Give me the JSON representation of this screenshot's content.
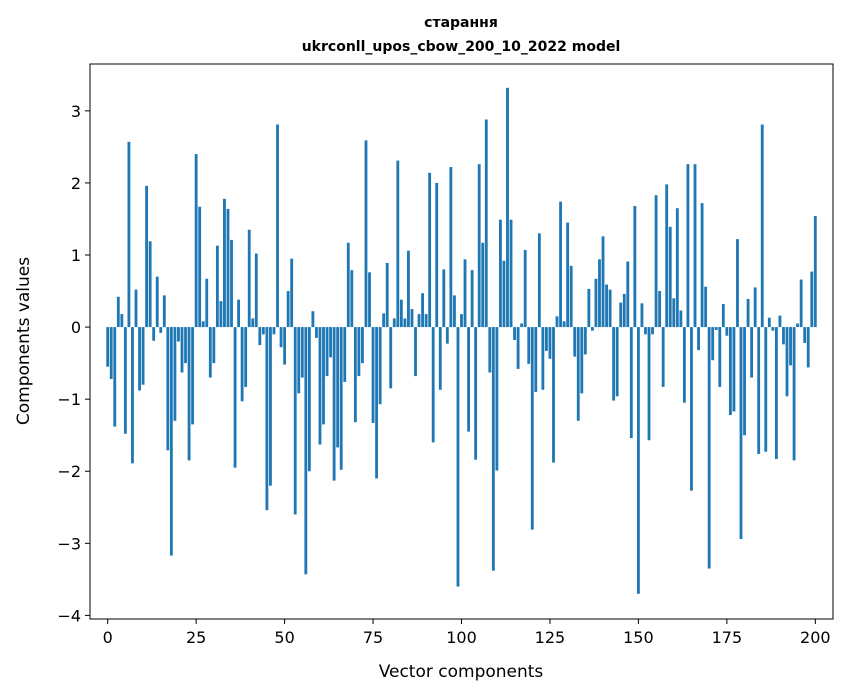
{
  "chart_data": {
    "type": "bar",
    "title": "старання",
    "subtitle": "ukrconll_upos_cbow_200_10_2022 model",
    "xlabel": "Vector components",
    "ylabel": "Components values",
    "xlim": [
      -5,
      205
    ],
    "ylim": [
      -4.05,
      3.65
    ],
    "xticks": [
      0,
      25,
      50,
      75,
      100,
      125,
      150,
      175,
      200
    ],
    "yticks": [
      -4,
      -3,
      -2,
      -1,
      0,
      1,
      2,
      3
    ],
    "xtick_labels": [
      "0",
      "25",
      "50",
      "75",
      "100",
      "125",
      "150",
      "175",
      "200"
    ],
    "ytick_labels": [
      "−4",
      "−3",
      "−2",
      "−1",
      "0",
      "1",
      "2",
      "3"
    ],
    "grid": false,
    "bar_color": "#1f77b4",
    "series": [
      {
        "values": [
          -0.55,
          -0.72,
          -1.38,
          0.42,
          0.18,
          -1.48,
          2.57,
          -1.89,
          0.52,
          -0.88,
          -0.8,
          1.96,
          1.19,
          -0.19,
          0.7,
          -0.08,
          0.44,
          -1.71,
          -3.17,
          -1.3,
          -0.2,
          -0.63,
          -0.5,
          -1.85,
          -1.35,
          2.4,
          1.67,
          0.08,
          0.67,
          -0.7,
          -0.5,
          1.13,
          0.36,
          1.78,
          1.64,
          1.21,
          -1.95,
          0.38,
          -1.03,
          -0.83,
          1.35,
          0.12,
          1.02,
          -0.25,
          -0.1,
          -2.54,
          -2.2,
          -0.1,
          2.81,
          -0.28,
          -0.52,
          0.5,
          0.95,
          -2.6,
          -0.92,
          -0.7,
          -3.43,
          -2.0,
          0.22,
          -0.15,
          -1.63,
          -1.35,
          -0.68,
          -0.42,
          -2.13,
          -1.67,
          -1.98,
          -0.76,
          1.17,
          0.79,
          -1.32,
          -0.68,
          -0.5,
          2.59,
          0.76,
          -1.33,
          -2.1,
          -1.07,
          0.19,
          0.89,
          -0.85,
          0.12,
          2.31,
          0.38,
          0.12,
          1.06,
          0.25,
          -0.68,
          0.18,
          0.47,
          0.18,
          2.14,
          -1.6,
          2.0,
          -0.87,
          0.8,
          -0.23,
          2.22,
          0.44,
          -3.6,
          0.18,
          0.94,
          -1.45,
          0.79,
          -1.84,
          2.26,
          1.17,
          2.88,
          -0.63,
          -3.38,
          -1.99,
          1.49,
          0.92,
          3.32,
          1.49,
          -0.18,
          -0.58,
          0.05,
          1.07,
          -0.51,
          -2.81,
          -0.9,
          1.3,
          -0.87,
          -0.33,
          -0.44,
          -1.88,
          0.15,
          1.74,
          0.08,
          1.45,
          0.85,
          -0.41,
          -1.3,
          -0.92,
          -0.38,
          0.53,
          -0.05,
          0.67,
          0.94,
          1.26,
          0.59,
          0.52,
          -1.02,
          -0.96,
          0.34,
          0.46,
          0.91,
          -1.54,
          1.68,
          -3.7,
          0.33,
          -0.1,
          -1.57,
          -0.1,
          1.83,
          0.5,
          -0.83,
          1.98,
          1.39,
          0.4,
          1.65,
          0.23,
          -1.05,
          2.26,
          -2.27,
          2.26,
          -0.32,
          1.72,
          0.56,
          -3.35,
          -0.46,
          -0.04,
          -0.83,
          0.32,
          -0.12,
          -1.22,
          -1.17,
          1.22,
          -2.94,
          -1.5,
          0.39,
          -0.7,
          0.55,
          -1.76,
          2.81,
          -1.73,
          0.13,
          -0.05,
          -1.83,
          0.16,
          -0.24,
          -0.96,
          -0.53,
          -1.85,
          0.05,
          0.66,
          -0.22,
          -0.56,
          0.77,
          1.54
        ]
      }
    ]
  }
}
